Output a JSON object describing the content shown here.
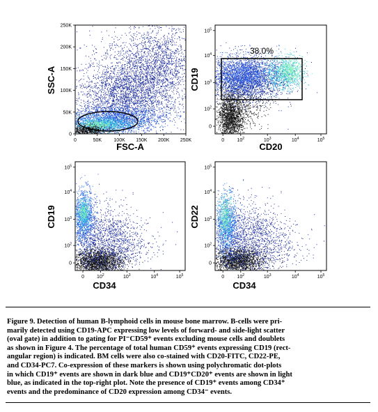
{
  "panels": [
    {
      "id": "fsc-ssc",
      "xlabel": "FSC-A",
      "ylabel": "SSC-A",
      "xticks": [
        "0",
        "50K",
        "100K",
        "150K",
        "200K",
        "250K"
      ],
      "yticks": [
        "0",
        "50K",
        "100K",
        "150K",
        "200K",
        "250K"
      ],
      "gate": {
        "type": "oval",
        "label": ""
      }
    },
    {
      "id": "cd20-cd19",
      "xlabel": "CD20",
      "ylabel": "CD19",
      "xticks": [
        "0",
        "10",
        "10",
        "10",
        "10"
      ],
      "xticks_sup": [
        "",
        "2",
        "3",
        "4",
        "5"
      ],
      "yticks": [
        "0",
        "10",
        "10",
        "10",
        "10"
      ],
      "yticks_sup": [
        "",
        "2",
        "3",
        "4",
        "5"
      ],
      "gate": {
        "type": "rectangle",
        "label": "38.0%"
      }
    },
    {
      "id": "cd34-cd19",
      "xlabel": "CD34",
      "ylabel": "CD19",
      "xticks": [
        "0",
        "10",
        "10",
        "10",
        "10"
      ],
      "xticks_sup": [
        "",
        "2",
        "3",
        "4",
        "5"
      ],
      "yticks": [
        "0",
        "10",
        "10",
        "10",
        "10"
      ],
      "yticks_sup": [
        "",
        "2",
        "3",
        "4",
        "5"
      ],
      "gate": null
    },
    {
      "id": "cd34-cd22",
      "xlabel": "CD34",
      "ylabel": "CD22",
      "xticks": [
        "0",
        "10",
        "10",
        "10",
        "10"
      ],
      "xticks_sup": [
        "",
        "2",
        "3",
        "4",
        "5"
      ],
      "yticks": [
        "0",
        "10",
        "10",
        "10",
        "10"
      ],
      "yticks_sup": [
        "",
        "2",
        "3",
        "4",
        "5"
      ],
      "gate": null
    }
  ],
  "colors": {
    "black_events": "#111111",
    "dark_blue_events": "#1a2a9a",
    "mid_blue_events": "#2a5ee8",
    "cyan_events": "#39c2e6",
    "light_green_events": "#7ff0b8",
    "gate_line": "#000000"
  },
  "caption": {
    "lines": [
      "Figure 9. Detection of human B-lymphoid cells in mouse bone marrow. B-cells were pri-",
      "marily detected using CD19-APC expressing low levels of forward- and side-light scatter",
      "(oval gate) in addition to gating for PI⁻CD59⁺ events excluding mouse cells and doublets",
      "as shown in Figure 4. The percentage of total human CD59⁺ events expressing CD19 (rect-",
      "angular region) is indicated. BM cells were also co-stained with CD20-FITC, CD22-PE,",
      "and CD34-PC7. Co-expression of these markers is shown using polychromatic dot-plots",
      "in which CD19⁺ events are shown in dark blue and CD19⁺CD20⁺ events are shown in light",
      "blue, as indicated in the top-right plot. Note the presence of CD19⁺ events among CD34⁺",
      "events and the predominance of CD20 expression among CD34⁻ events."
    ]
  }
}
